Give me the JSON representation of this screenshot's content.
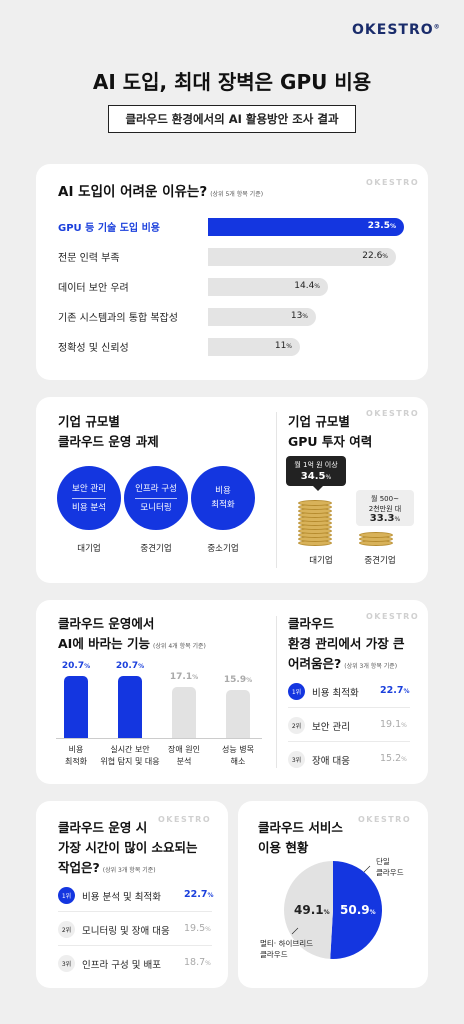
{
  "brand": "OKESTRO",
  "title": "AI 도입, 최대 장벽은 GPU 비용",
  "subtitle": "클라우드 환경에서의 AI 활용방안 조사 결과",
  "watermark": "OKESTRO",
  "accent_color": "#1436e0",
  "card1": {
    "title": "AI 도입이 어려운 이유는?",
    "note": "(상위 5개 항목 기준)",
    "chart_data": {
      "type": "bar",
      "categories": [
        "GPU 등 기술 도입 비용",
        "전문 인력 부족",
        "데이터 보안 우려",
        "기존 시스템과의 통합 복잡성",
        "정확성 및 신뢰성"
      ],
      "values": [
        23.5,
        22.6,
        14.4,
        13,
        11
      ],
      "unit": "%",
      "highlight_index": 0
    },
    "labels": [
      "GPU 등 기술 도입 비용",
      "전문 인력 부족",
      "데이터 보안 우려",
      "기존 시스템과의 통합 복잡성",
      "정확성 및 신뢰성"
    ],
    "value_labels": [
      "23.5",
      "22.6",
      "14.4",
      "13",
      "11"
    ]
  },
  "card2": {
    "title_line1": "기업 규모별",
    "title_line2": "클라우드 운영 과제",
    "circles": [
      {
        "line1": "보안 관리",
        "line2": "비용 분석",
        "label": "대기업"
      },
      {
        "line1": "인프라 구성",
        "line2": "모니터링",
        "label": "중견기업"
      },
      {
        "line1": "비용",
        "line2": "최적화",
        "label": "중소기업"
      }
    ]
  },
  "card3": {
    "title_line1": "기업 규모별",
    "title_line2": "GPU 투자 여력",
    "big": {
      "desc": "월 1억 원 이상",
      "value": "34.5",
      "label": "대기업"
    },
    "small": {
      "desc1": "월 500~",
      "desc2": "2천만원 대",
      "value": "33.3",
      "label": "중견기업"
    }
  },
  "card4": {
    "title_line1": "클라우드 운영에서",
    "title_line2": "AI에 바라는 기능",
    "note": "(상위 4개 항목 기준)",
    "chart_data": {
      "type": "bar",
      "categories": [
        "비용 최적화",
        "실시간 보안 위협 탐지 및 대응",
        "장애 원인 분석",
        "성능 병목 해소"
      ],
      "values": [
        20.7,
        20.7,
        17.1,
        15.9
      ],
      "unit": "%"
    },
    "value_labels": [
      "20.7",
      "20.7",
      "17.1",
      "15.9"
    ],
    "bar_labels": [
      {
        "l1": "비용",
        "l2": "최적화"
      },
      {
        "l1": "실시간 보안",
        "l2": "위협 탐지 및 대응"
      },
      {
        "l1": "장애 원인",
        "l2": "분석"
      },
      {
        "l1": "성능 병목",
        "l2": "해소"
      }
    ]
  },
  "card5": {
    "title_line1": "클라우드",
    "title_line2": "환경 관리에서 가장 큰",
    "title_line3": "어려움은?",
    "note": "(상위 3개 항목 기준)",
    "items": [
      {
        "rank": "1위",
        "label": "비용 최적화",
        "value": "22.7"
      },
      {
        "rank": "2위",
        "label": "보안 관리",
        "value": "19.1"
      },
      {
        "rank": "3위",
        "label": "장애 대응",
        "value": "15.2"
      }
    ]
  },
  "card6": {
    "title_line1": "클라우드 운영 시",
    "title_line2": "가장 시간이 많이 소요되는",
    "title_line3": "작업은?",
    "note": "(상위 3개 항목 기준)",
    "items": [
      {
        "rank": "1위",
        "label": "비용 분석 및 최적화",
        "value": "22.7"
      },
      {
        "rank": "2위",
        "label": "모니터링 및 장애 대응",
        "value": "19.5"
      },
      {
        "rank": "3위",
        "label": "인프라 구성 및 배포",
        "value": "18.7"
      }
    ]
  },
  "card7": {
    "title_line1": "클라우드 서비스",
    "title_line2": "이용 현황",
    "chart_data": {
      "type": "pie",
      "categories": [
        "단일 클라우드",
        "멀티·하이브리드 클라우드"
      ],
      "values": [
        50.9,
        49.1
      ],
      "unit": "%"
    },
    "single_l1": "단일",
    "single_l2": "클라우드",
    "multi_l1": "멀티· 하이브리드",
    "multi_l2": "클라우드",
    "single_value": "50.9",
    "multi_value": "49.1"
  },
  "percent_sign": "%"
}
